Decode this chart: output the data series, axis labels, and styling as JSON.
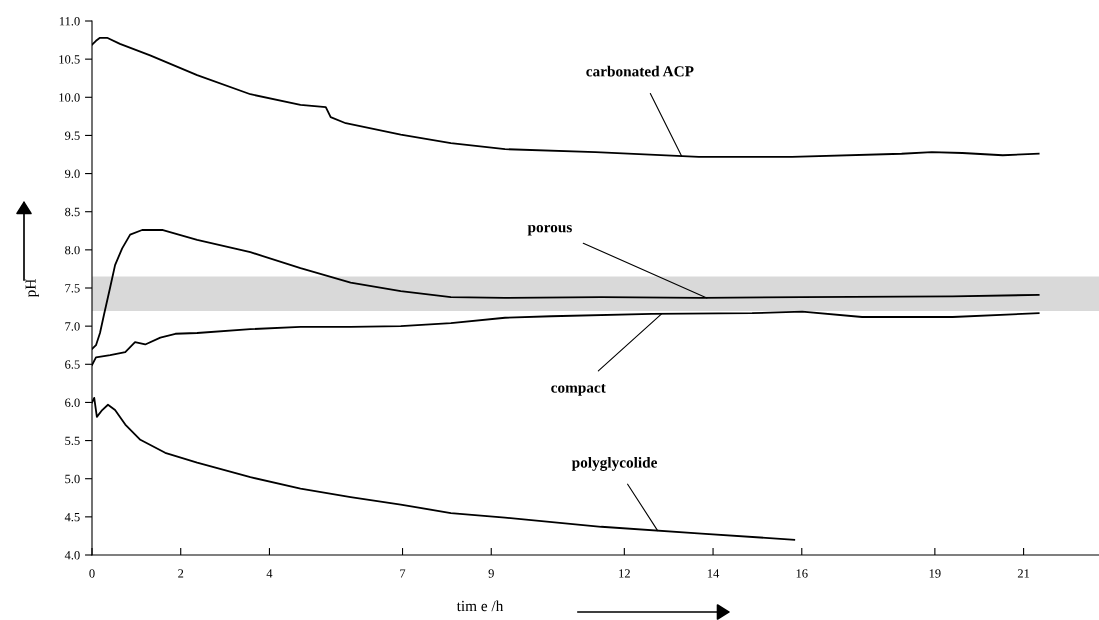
{
  "chart_data": {
    "type": "line",
    "xlabel": "tim e /h",
    "ylabel": "pH",
    "series": [
      {
        "color": "#000000",
        "x": [
          0,
          0.09,
          0.18,
          0.34,
          0.63,
          1.31,
          2.37,
          3.57,
          4.7,
          5.27,
          5.38,
          5.72,
          6.96,
          8.09,
          9.31,
          11.35,
          13.68,
          15.78,
          18.25,
          18.93,
          19.62,
          20.53,
          21.34
        ],
        "values": [
          10.69,
          10.74,
          10.78,
          10.78,
          10.7,
          10.55,
          10.29,
          10.04,
          9.9,
          9.87,
          9.74,
          9.66,
          9.51,
          9.4,
          9.32,
          9.28,
          9.22,
          9.22,
          9.26,
          9.28,
          9.27,
          9.24,
          9.26
        ]
      },
      {
        "color": "#000000",
        "x": [
          0,
          0.09,
          0.18,
          0.27,
          0.41,
          0.52,
          0.68,
          0.86,
          1.13,
          1.6,
          2.37,
          3.57,
          4.7,
          5.83,
          6.96,
          8.09,
          9.31,
          11.48,
          13.74,
          16.01,
          19.4,
          21.34
        ],
        "values": [
          6.7,
          6.75,
          6.91,
          7.15,
          7.51,
          7.8,
          8.02,
          8.2,
          8.26,
          8.26,
          8.13,
          7.97,
          7.76,
          7.57,
          7.46,
          7.38,
          7.37,
          7.38,
          7.37,
          7.38,
          7.39,
          7.41
        ]
      },
      {
        "color": "#000000",
        "x": [
          0,
          0.09,
          0.41,
          0.75,
          0.97,
          1.2,
          1.54,
          1.88,
          2.37,
          3.57,
          4.7,
          5.83,
          6.96,
          8.09,
          9.31,
          10.35,
          12.62,
          14.88,
          16.01,
          17.36,
          19.4,
          21.34
        ],
        "values": [
          6.49,
          6.59,
          6.62,
          6.66,
          6.79,
          6.76,
          6.85,
          6.9,
          6.91,
          6.96,
          6.99,
          6.99,
          7.0,
          7.04,
          7.11,
          7.13,
          7.16,
          7.17,
          7.19,
          7.12,
          7.12,
          7.17
        ]
      },
      {
        "color": "#000000",
        "x": [
          0,
          0.05,
          0.11,
          0.23,
          0.36,
          0.52,
          0.75,
          1.09,
          1.65,
          2.37,
          3.57,
          4.7,
          5.83,
          6.96,
          8.09,
          9.31,
          11.48,
          13.74,
          15.83
        ],
        "values": [
          6.0,
          6.06,
          5.81,
          5.9,
          5.97,
          5.9,
          5.71,
          5.51,
          5.34,
          5.21,
          5.02,
          4.87,
          4.76,
          4.66,
          4.55,
          4.49,
          4.37,
          4.28,
          4.2
        ]
      }
    ],
    "xlim": [
      0,
      22.7
    ],
    "xticks": [
      0,
      2,
      4,
      7,
      9,
      12,
      14,
      16,
      19,
      21
    ],
    "ylim": [
      4,
      11
    ],
    "yticks": [
      {
        "value": 4,
        "label": "4.0"
      },
      {
        "value": 4.5,
        "label": "4.5"
      },
      {
        "value": 5,
        "label": "5.0"
      },
      {
        "value": 5.5,
        "label": "5.5"
      },
      {
        "value": 6,
        "label": "6.0"
      },
      {
        "value": 6.5,
        "label": "6.5"
      },
      {
        "value": 7,
        "label": "7.0"
      },
      {
        "value": 7.5,
        "label": "7.5"
      },
      {
        "value": 8,
        "label": "8.0"
      },
      {
        "value": 8.5,
        "label": "8.5"
      },
      {
        "value": 9,
        "label": "9.0"
      },
      {
        "value": 9.5,
        "label": "9.5"
      },
      {
        "value": 10,
        "label": "10.0"
      },
      {
        "value": 10.5,
        "label": "10.5"
      },
      {
        "value": 11,
        "label": "11.0"
      }
    ],
    "bands": [
      {
        "axis": "y",
        "from": 7.2,
        "to": 7.65,
        "color": "#d9d9d9"
      }
    ],
    "annotations": [
      {
        "text": "carbonated ACP",
        "x": 13.29,
        "y": 9.23
      },
      {
        "text": "porous",
        "x": 13.86,
        "y": 7.37
      },
      {
        "text": "compact",
        "x": 12.84,
        "y": 7.16
      },
      {
        "text": "polyglycolide",
        "x": 12.75,
        "y": 4.32
      }
    ],
    "grid": false,
    "legend": false,
    "marker": "none",
    "line_style": "solid"
  }
}
